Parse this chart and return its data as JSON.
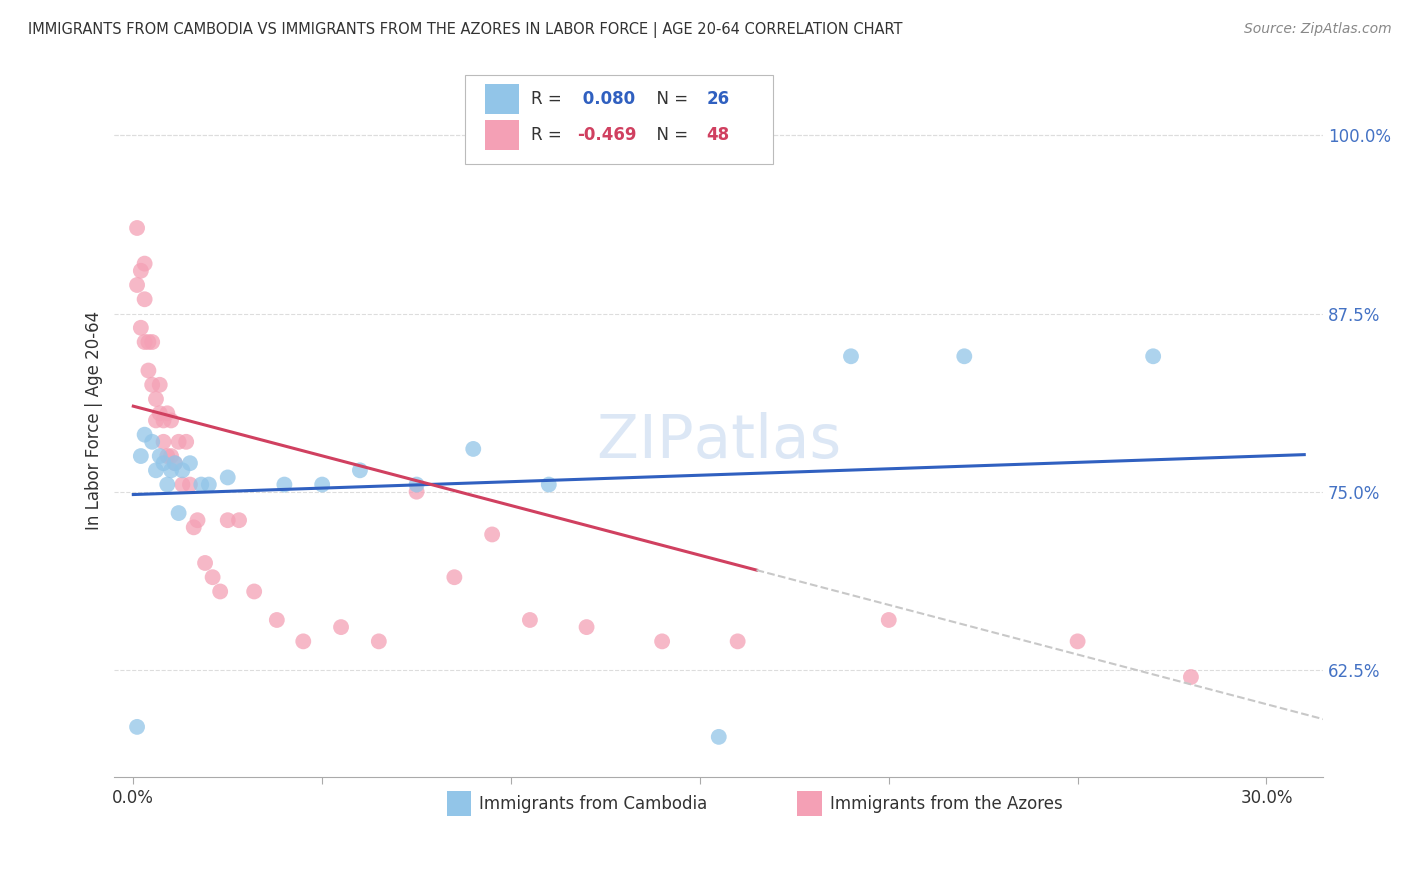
{
  "title": "IMMIGRANTS FROM CAMBODIA VS IMMIGRANTS FROM THE AZORES IN LABOR FORCE | AGE 20-64 CORRELATION CHART",
  "source": "Source: ZipAtlas.com",
  "ylabel": "In Labor Force | Age 20-64",
  "x_ticks": [
    0.0,
    0.05,
    0.1,
    0.15,
    0.2,
    0.25,
    0.3
  ],
  "y_ticks": [
    0.625,
    0.75,
    0.875,
    1.0
  ],
  "xlim": [
    -0.005,
    0.315
  ],
  "ylim": [
    0.55,
    1.05
  ],
  "cambodia_color": "#92c5e8",
  "azores_color": "#f4a0b5",
  "cambodia_R": 0.08,
  "cambodia_N": 26,
  "azores_R": -0.469,
  "azores_N": 48,
  "line_blue": "#3060c0",
  "line_pink": "#d04060",
  "line_gray": "#c8c8c8",
  "cambodia_x": [
    0.001,
    0.002,
    0.003,
    0.005,
    0.006,
    0.007,
    0.008,
    0.009,
    0.01,
    0.011,
    0.012,
    0.013,
    0.015,
    0.018,
    0.02,
    0.025,
    0.04,
    0.05,
    0.06,
    0.075,
    0.09,
    0.11,
    0.155,
    0.19,
    0.22,
    0.27
  ],
  "cambodia_y": [
    0.585,
    0.775,
    0.79,
    0.785,
    0.765,
    0.775,
    0.77,
    0.755,
    0.765,
    0.77,
    0.735,
    0.765,
    0.77,
    0.755,
    0.755,
    0.76,
    0.755,
    0.755,
    0.765,
    0.755,
    0.78,
    0.755,
    0.578,
    0.845,
    0.845,
    0.845
  ],
  "azores_x": [
    0.001,
    0.001,
    0.002,
    0.002,
    0.003,
    0.003,
    0.003,
    0.004,
    0.004,
    0.005,
    0.005,
    0.006,
    0.006,
    0.007,
    0.007,
    0.008,
    0.008,
    0.009,
    0.009,
    0.01,
    0.01,
    0.011,
    0.012,
    0.013,
    0.014,
    0.015,
    0.016,
    0.017,
    0.019,
    0.021,
    0.023,
    0.025,
    0.028,
    0.032,
    0.038,
    0.045,
    0.055,
    0.065,
    0.075,
    0.085,
    0.095,
    0.105,
    0.12,
    0.14,
    0.16,
    0.2,
    0.25,
    0.28
  ],
  "azores_y": [
    0.935,
    0.895,
    0.905,
    0.865,
    0.91,
    0.885,
    0.855,
    0.835,
    0.855,
    0.825,
    0.855,
    0.815,
    0.8,
    0.825,
    0.805,
    0.785,
    0.8,
    0.805,
    0.775,
    0.8,
    0.775,
    0.77,
    0.785,
    0.755,
    0.785,
    0.755,
    0.725,
    0.73,
    0.7,
    0.69,
    0.68,
    0.73,
    0.73,
    0.68,
    0.66,
    0.645,
    0.655,
    0.645,
    0.75,
    0.69,
    0.72,
    0.66,
    0.655,
    0.645,
    0.645,
    0.66,
    0.645,
    0.62
  ],
  "azores_line_end_x": 0.165,
  "blue_line_x0": 0.0,
  "blue_line_y0": 0.748,
  "blue_line_x1": 0.31,
  "blue_line_y1": 0.776,
  "pink_line_x0": 0.0,
  "pink_line_y0": 0.81,
  "pink_line_x1": 0.165,
  "pink_line_y1": 0.695
}
